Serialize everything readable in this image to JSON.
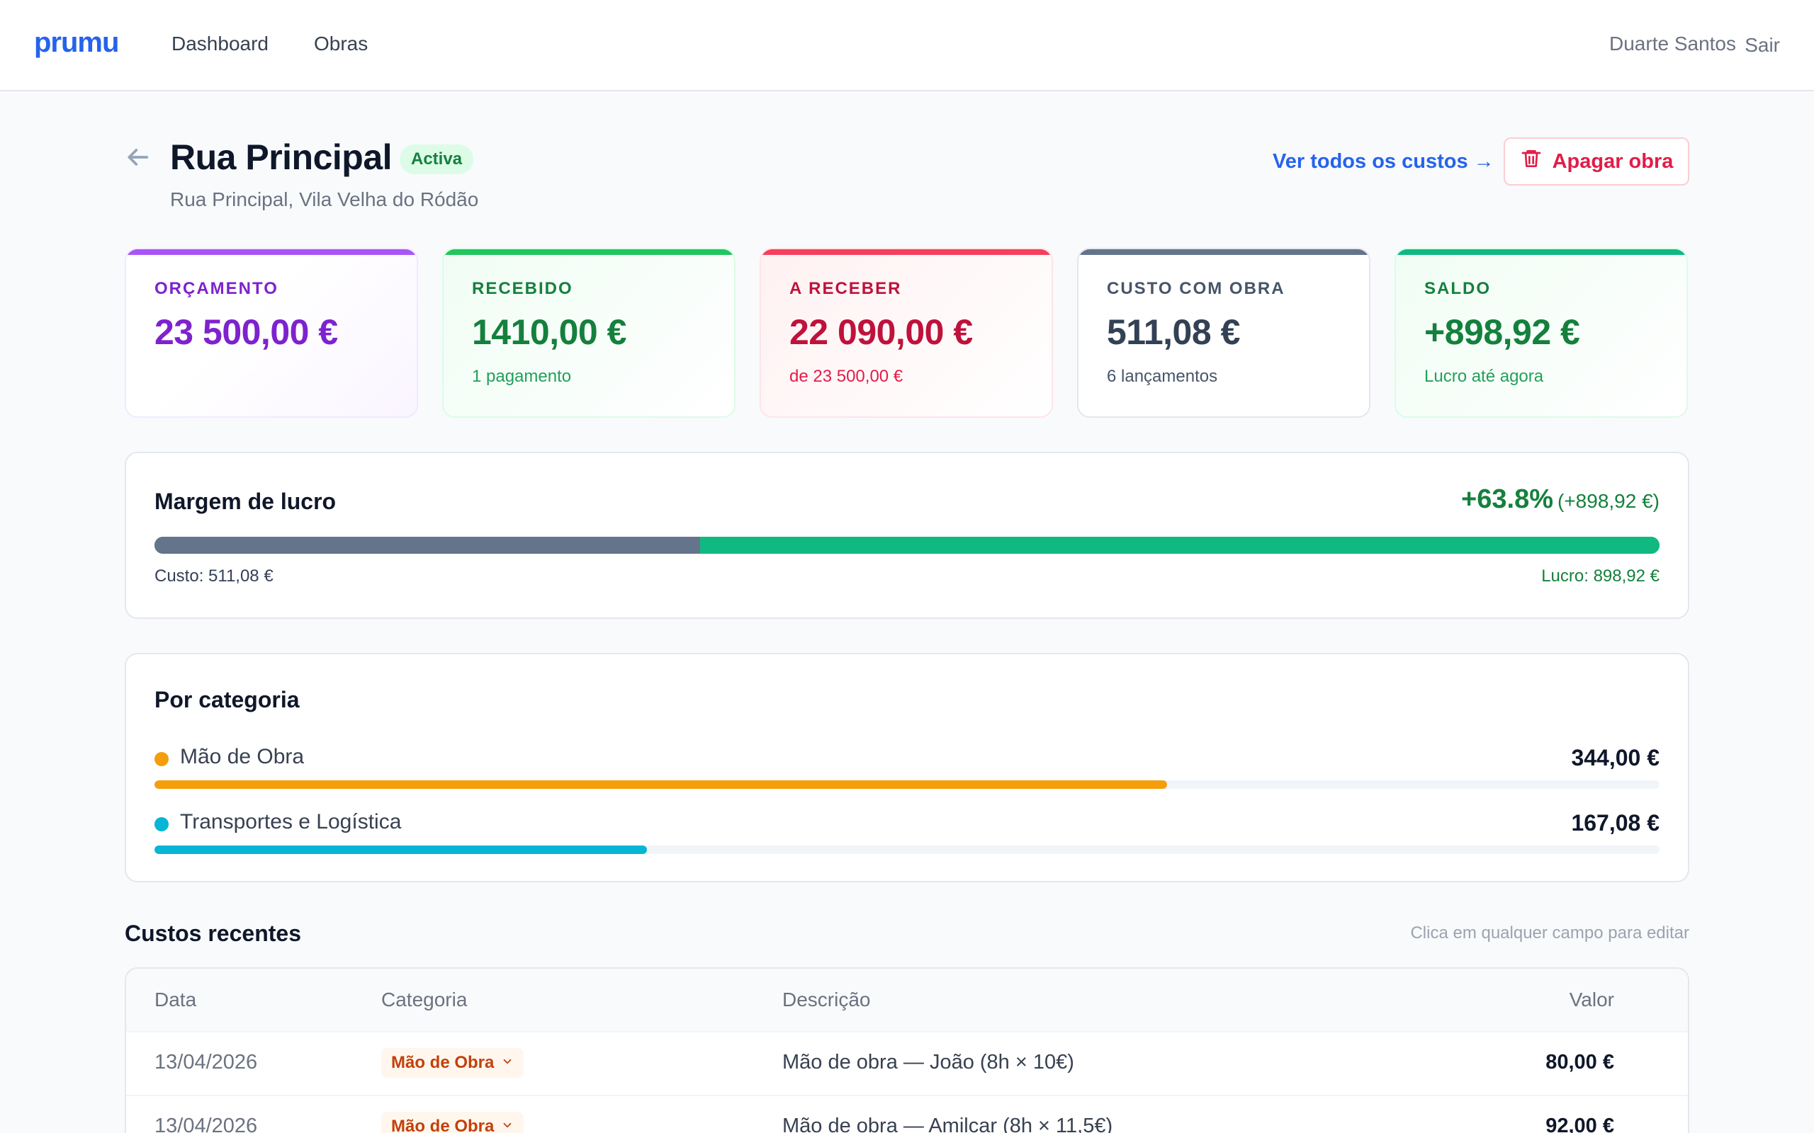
{
  "app": {
    "logo": "prumu"
  },
  "nav": {
    "items": [
      {
        "label": "Dashboard"
      },
      {
        "label": "Obras"
      }
    ],
    "user_name": "Duarte Santos",
    "logout": "Sair"
  },
  "header": {
    "title": "Rua Principal",
    "status": "Activa",
    "address": "Rua Principal, Vila Velha do Ródão",
    "view_costs": "Ver todos os custos →",
    "delete": "Apagar obra"
  },
  "stats": [
    {
      "label": "ORÇAMENTO",
      "value": "23 500,00 €",
      "sub": "",
      "color": "#7e22ce"
    },
    {
      "label": "RECEBIDO",
      "value": "1410,00 €",
      "sub": "1 pagamento",
      "color": "#15803d"
    },
    {
      "label": "A RECEBER",
      "value": "22 090,00 €",
      "sub": "de 23 500,00 €",
      "color": "#be123c"
    },
    {
      "label": "CUSTO COM OBRA",
      "value": "511,08 €",
      "sub": "6 lançamentos",
      "color": "#334155"
    },
    {
      "label": "SALDO",
      "value": "+898,92 €",
      "sub": "Lucro até agora",
      "color": "#15803d"
    }
  ],
  "margin": {
    "title": "Margem de lucro",
    "percent": "+63.8%",
    "absolute": "(+898,92 €)",
    "cost_share": 0.3625,
    "cost_caption": "Custo: 511,08 €",
    "profit_caption": "Lucro: 898,92 €"
  },
  "categories": {
    "title": "Por categoria",
    "items": [
      {
        "name": "Mão de Obra",
        "value": "344,00 €",
        "share": 0.673,
        "color": "#f59e0b"
      },
      {
        "name": "Transportes e Logística",
        "value": "167,08 €",
        "share": 0.327,
        "color": "#06b6d4"
      }
    ]
  },
  "recent": {
    "title": "Custos recentes",
    "hint": "Clica em qualquer campo para editar",
    "columns": {
      "date": "Data",
      "category": "Categoria",
      "description": "Descrição",
      "value": "Valor"
    },
    "rows": [
      {
        "date": "13/04/2026",
        "category": "Mão de Obra",
        "description": "Mão de obra — João (8h × 10€)",
        "value": "80,00 €"
      },
      {
        "date": "13/04/2026",
        "category": "Mão de Obra",
        "description": "Mão de obra — Amilcar (8h × 11,5€)",
        "value": "92,00 €"
      }
    ]
  }
}
